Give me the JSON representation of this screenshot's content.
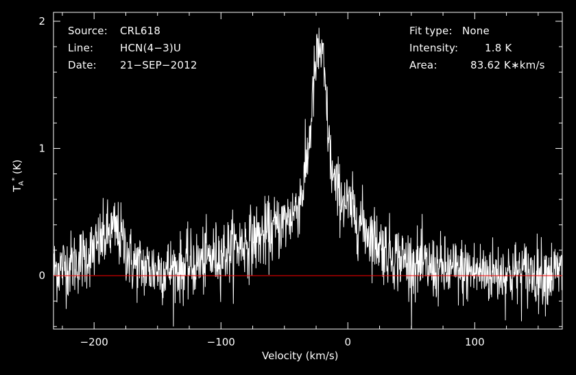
{
  "chart_data": {
    "type": "line",
    "xlabel": "Velocity (km/s)",
    "ylabel_main": "T",
    "ylabel_sub": "A",
    "ylabel_sup": "*",
    "ylabel_unit": "(K)",
    "xlim": [
      -232,
      169
    ],
    "ylim": [
      -0.42,
      2.07
    ],
    "x_ticks": [
      -200,
      -100,
      0,
      100
    ],
    "y_ticks": [
      0,
      1,
      2
    ],
    "baseline": {
      "y": 0,
      "color": "#ff0000"
    },
    "line_color": "#ffffff",
    "noise_rms": 0.13,
    "series": [
      {
        "x": [
          -232,
          -215,
          -200,
          -190,
          -183,
          -178,
          -170,
          -160,
          -150,
          -140,
          -130,
          -120,
          -110,
          -100,
          -90,
          -80,
          -70,
          -60,
          -50,
          -45,
          -40,
          -35,
          -32,
          -30,
          -28,
          -26,
          -24,
          -22,
          -20,
          -18,
          -16,
          -14,
          -12,
          -10,
          -5,
          0,
          10,
          20,
          30,
          40,
          50,
          60,
          70,
          80,
          100,
          120,
          140,
          160,
          169
        ],
        "y": [
          0.05,
          0.1,
          0.2,
          0.32,
          0.36,
          0.28,
          0.1,
          0.06,
          0.05,
          0.05,
          0.06,
          0.09,
          0.13,
          0.17,
          0.22,
          0.26,
          0.3,
          0.35,
          0.42,
          0.47,
          0.54,
          0.7,
          0.92,
          1.1,
          1.35,
          1.6,
          1.72,
          1.78,
          1.7,
          1.5,
          1.2,
          0.95,
          0.78,
          0.7,
          0.62,
          0.55,
          0.42,
          0.3,
          0.2,
          0.14,
          0.1,
          0.07,
          0.05,
          0.04,
          0.03,
          0.02,
          0.02,
          0.02,
          0.02
        ]
      }
    ]
  },
  "info": {
    "source_label": "Source:",
    "source_value": "CRL618",
    "line_label": "Line:",
    "line_value": "HCN(4−3)U",
    "date_label": "Date:",
    "date_value": "21−SEP−2012",
    "fit_label": "Fit type:",
    "fit_value": "None",
    "intensity_label": "Intensity:",
    "intensity_value": "1.8 K",
    "area_label": "Area:",
    "area_value": "83.62 K∗km/s"
  }
}
